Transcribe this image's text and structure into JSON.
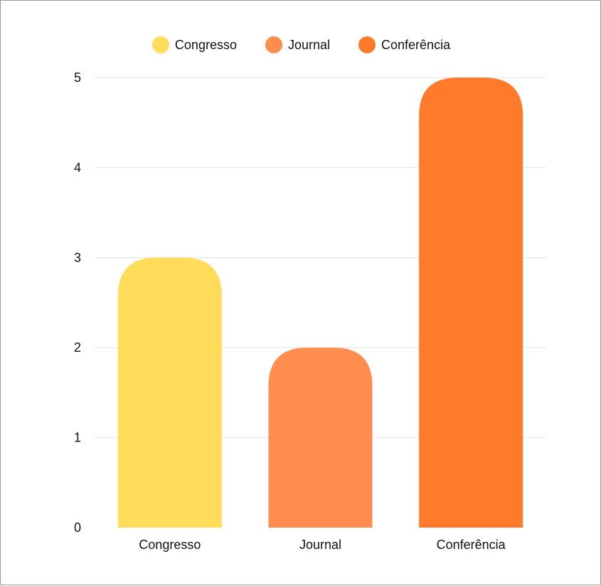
{
  "chart_data": {
    "type": "bar",
    "categories": [
      "Congresso",
      "Journal",
      "Conferência"
    ],
    "values": [
      3,
      2,
      5
    ],
    "colors": [
      "#FFDC5A",
      "#FF8D4F",
      "#FF7A2B"
    ],
    "legend": {
      "position": "top",
      "entries": [
        {
          "label": "Congresso",
          "color": "#FFDC5A"
        },
        {
          "label": "Journal",
          "color": "#FF8D4F"
        },
        {
          "label": "Conferência",
          "color": "#FF7A2B"
        }
      ]
    },
    "yticks": [
      "0",
      "1",
      "2",
      "3",
      "4",
      "5"
    ],
    "ylim": [
      0,
      5
    ],
    "grid": true,
    "title": "",
    "xlabel": "",
    "ylabel": ""
  }
}
